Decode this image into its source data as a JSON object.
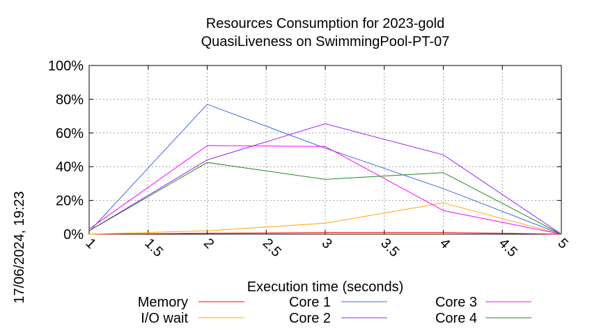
{
  "chart_data": {
    "type": "line",
    "title": [
      "Resources Consumption for 2023-gold",
      "QuasiLiveness on SwimmingPool-PT-07"
    ],
    "xlabel": "Execution time (seconds)",
    "ylabel": "",
    "xlim": [
      1,
      5
    ],
    "ylim": [
      0,
      100
    ],
    "x_ticks": [
      "1",
      "1.5",
      "2",
      "2.5",
      "3",
      "3.5",
      "4",
      "4.5",
      "5"
    ],
    "y_ticks": [
      "0%",
      "20%",
      "40%",
      "60%",
      "80%",
      "100%"
    ],
    "grid": true,
    "legend_position": "bottom",
    "timestamp": "17/06/2024, 19:23",
    "series": [
      {
        "name": "Memory",
        "color": "#ff0000",
        "x": [
          1,
          2,
          3,
          4,
          5
        ],
        "y": [
          0,
          0.5,
          1,
          1,
          0
        ]
      },
      {
        "name": "I/O wait",
        "color": "#ffa500",
        "x": [
          1,
          2,
          3,
          4,
          5
        ],
        "y": [
          0,
          2,
          6.5,
          18.5,
          0
        ]
      },
      {
        "name": "Core 1",
        "color": "#4169e1",
        "x": [
          1,
          2,
          3,
          4,
          5
        ],
        "y": [
          1.5,
          77,
          51,
          27,
          0
        ]
      },
      {
        "name": "Core 2",
        "color": "#a020f0",
        "x": [
          1,
          2,
          3,
          4,
          5
        ],
        "y": [
          2,
          44,
          65.5,
          47,
          0
        ]
      },
      {
        "name": "Core 3",
        "color": "#ff00ff",
        "x": [
          1,
          2,
          3,
          4,
          5
        ],
        "y": [
          3,
          52.5,
          52,
          14,
          0
        ]
      },
      {
        "name": "Core 4",
        "color": "#228b22",
        "x": [
          1,
          2,
          3,
          4,
          5
        ],
        "y": [
          2,
          42.5,
          32.5,
          36.5,
          0
        ]
      }
    ]
  }
}
